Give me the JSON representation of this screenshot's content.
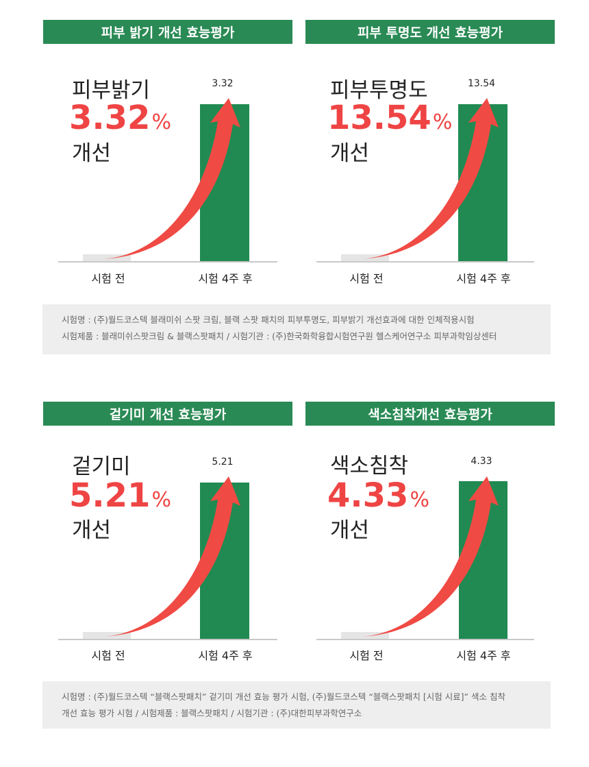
{
  "chart_data": [
    {
      "type": "bar",
      "title": "피부 밝기 개선 효능평가",
      "categories": [
        "시험 전",
        "시험 4주 후"
      ],
      "values": [
        null,
        3.32
      ],
      "value_label": "3.32",
      "metric": "피부밝기",
      "value": "3.32",
      "unit": "%",
      "suffix": "개선"
    },
    {
      "type": "bar",
      "title": "피부 투명도 개선 효능평가",
      "categories": [
        "시험 전",
        "시험 4주 후"
      ],
      "values": [
        null,
        13.54
      ],
      "value_label": "13.54",
      "metric": "피부투명도",
      "value": "13.54",
      "unit": "%",
      "suffix": "개선"
    },
    {
      "type": "bar",
      "title": "겉기미 개선 효능평가",
      "categories": [
        "시험 전",
        "시험 4주 후"
      ],
      "values": [
        null,
        5.21
      ],
      "value_label": "5.21",
      "metric": "겉기미",
      "value": "5.21",
      "unit": "%",
      "suffix": "개선"
    },
    {
      "type": "bar",
      "title": "색소침착개선 효능평가",
      "categories": [
        "시험 전",
        "시험 4주 후"
      ],
      "values": [
        null,
        4.33
      ],
      "value_label": "4.33",
      "metric": "색소침착",
      "value": "4.33",
      "unit": "%",
      "suffix": "개선"
    }
  ],
  "notes": [
    {
      "line1": "시험명 : (주)월드코스텍 블래미쉬 스팟 크림, 블랙 스팟 패치의 피부투명도, 피부밝기 개선효과에 대한 인체적용시험",
      "line2": "시험제품 : 블래미쉬스팟크림 & 블랙스팟패치 / 시험기관 : (주)한국화학융합시험연구원 헬스케어연구소 피부과학임상센터"
    },
    {
      "line1": "시험명 : (주)월드코스텍 “블랙스팟패치” 겉기미 개선 효능 평가 시험, (주)월드코스텍 “블랙스팟패치 [시험 시료]” 색소 침착",
      "line2": "개선 효능 평가 시험 / 시험제품 : 블랙스팟패치 / 시험기관 : (주)대한피부과학연구소"
    }
  ],
  "colors": {
    "header_green": "#2a8a55",
    "bar_green": "#218a52",
    "before_bar": "#e5e5e5",
    "accent_red": "#ef4444",
    "note_bg": "#eeeeee"
  }
}
